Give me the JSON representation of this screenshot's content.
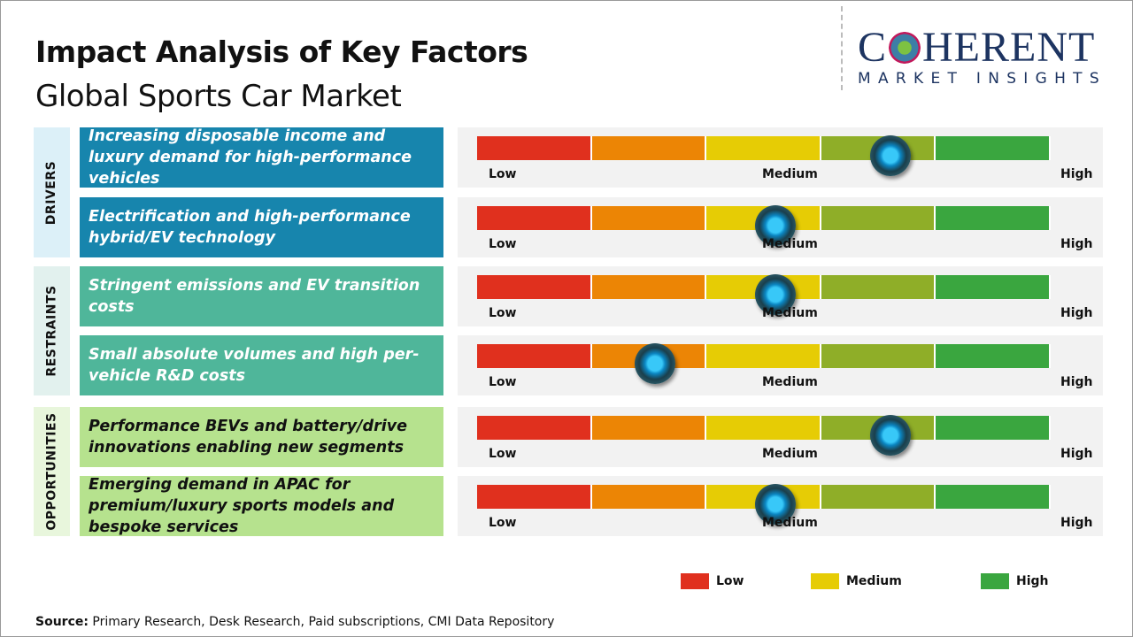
{
  "header": {
    "title": "Impact Analysis of Key Factors",
    "subtitle": "Global Sports Car Market"
  },
  "logo": {
    "main_left": "C",
    "main_right": "HERENT",
    "sub": "MARKET INSIGHTS"
  },
  "scale_labels": {
    "low": "Low",
    "medium": "Medium",
    "high": "High"
  },
  "segment_colors": [
    "#e0301e",
    "#ec8505",
    "#e6cc05",
    "#8fae28",
    "#3aa63f"
  ],
  "categories": [
    {
      "label": "DRIVERS",
      "bg": "#dcf0f8",
      "item_color": "#1785ad",
      "text_color": "#ffffff"
    },
    {
      "label": "RESTRAINTS",
      "bg": "#e2f1ee",
      "item_color": "#4fb69a",
      "text_color": "#ffffff"
    },
    {
      "label": "OPPORTUNITIES",
      "bg": "#e8f6dc",
      "item_color": "#b6e28e",
      "text_color": "#111111"
    }
  ],
  "factors": [
    {
      "category": 0,
      "text": "Increasing disposable income and luxury demand for high-performance vehicles",
      "impact_percent": 72
    },
    {
      "category": 0,
      "text": "Electrification and high-performance hybrid/EV technology",
      "impact_percent": 52
    },
    {
      "category": 1,
      "text": "Stringent emissions and EV transition costs",
      "impact_percent": 52
    },
    {
      "category": 1,
      "text": "Small absolute volumes and high per-vehicle R&D costs",
      "impact_percent": 31
    },
    {
      "category": 2,
      "text": "Performance BEVs and battery/drive innovations enabling new segments",
      "impact_percent": 72
    },
    {
      "category": 2,
      "text": "Emerging demand in APAC for premium/luxury sports models and bespoke services",
      "impact_percent": 52
    }
  ],
  "legend": [
    {
      "label": "Low",
      "color": "#e0301e"
    },
    {
      "label": "Medium",
      "color": "#e6cc05"
    },
    {
      "label": "High",
      "color": "#3aa63f"
    }
  ],
  "source": {
    "label": "Source:",
    "text": " Primary Research, Desk Research, Paid subscriptions, CMI Data Repository"
  }
}
